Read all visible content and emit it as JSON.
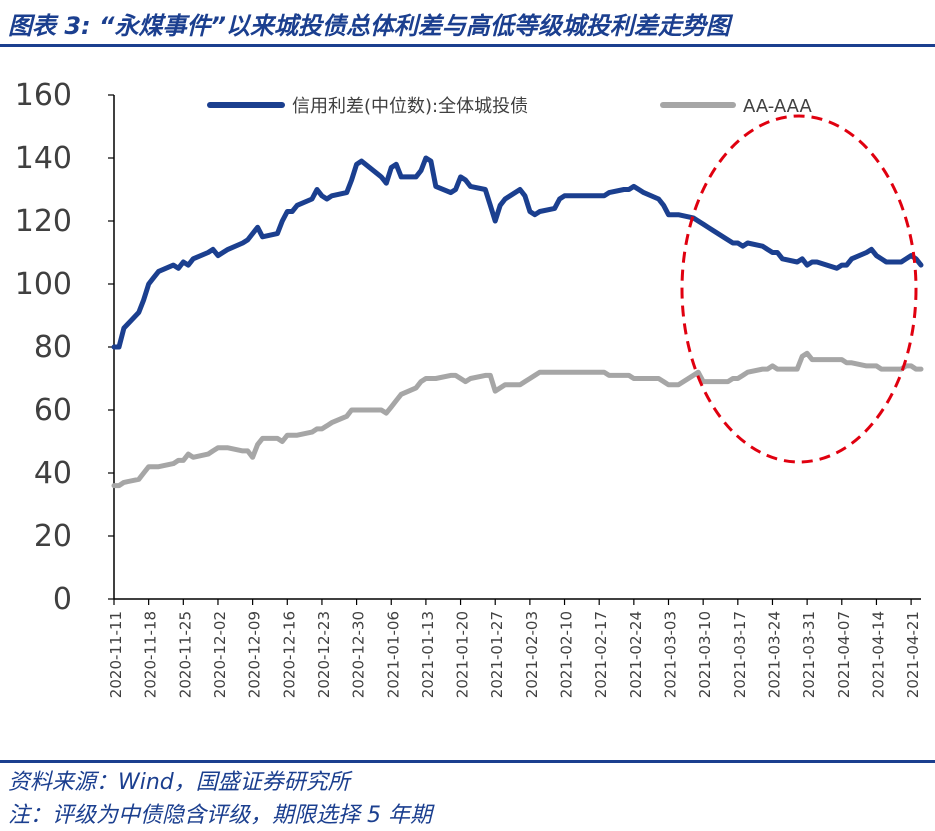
{
  "title": "图表 3:   “永煤事件”以来城投债总体利差与高低等级城投利差走势图",
  "source": "资料来源：Wind，国盛证券研究所",
  "note": "注：评级为中债隐含评级，期限选择 5 年期",
  "colors": {
    "series1": "#1b3f8f",
    "series2": "#a6a6a6",
    "annotation": "#e0000f",
    "accent": "#1b3f8f"
  },
  "chart_data": {
    "type": "line",
    "ylim": [
      0,
      160
    ],
    "yticks": [
      0,
      20,
      40,
      60,
      80,
      100,
      120,
      140,
      160
    ],
    "xlim": [
      "2020-11-11",
      "2021-04-23"
    ],
    "xticks": [
      "2020-11-11",
      "2020-11-18",
      "2020-11-25",
      "2020-12-02",
      "2020-12-09",
      "2020-12-16",
      "2020-12-23",
      "2020-12-30",
      "2021-01-06",
      "2021-01-13",
      "2021-01-20",
      "2021-01-27",
      "2021-02-03",
      "2021-02-10",
      "2021-02-17",
      "2021-02-24",
      "2021-03-03",
      "2021-03-10",
      "2021-03-17",
      "2021-03-24",
      "2021-03-31",
      "2021-04-07",
      "2021-04-14",
      "2021-04-21"
    ],
    "legend_position": "top",
    "grid": false,
    "annotation": "red dashed ellipse around 2021-03-10 to 2021-04-23",
    "series": [
      {
        "name": "信用利差(中位数):全体城投债",
        "color": "#1b3f8f",
        "points": [
          [
            "2020-11-11",
            80
          ],
          [
            "2020-11-12",
            80
          ],
          [
            "2020-11-13",
            86
          ],
          [
            "2020-11-16",
            91
          ],
          [
            "2020-11-17",
            95
          ],
          [
            "2020-11-18",
            100
          ],
          [
            "2020-11-19",
            102
          ],
          [
            "2020-11-20",
            104
          ],
          [
            "2020-11-23",
            106
          ],
          [
            "2020-11-24",
            105
          ],
          [
            "2020-11-25",
            107
          ],
          [
            "2020-11-26",
            106
          ],
          [
            "2020-11-27",
            108
          ],
          [
            "2020-11-30",
            110
          ],
          [
            "2020-12-01",
            111
          ],
          [
            "2020-12-02",
            109
          ],
          [
            "2020-12-03",
            110
          ],
          [
            "2020-12-04",
            111
          ],
          [
            "2020-12-07",
            113
          ],
          [
            "2020-12-08",
            114
          ],
          [
            "2020-12-09",
            116
          ],
          [
            "2020-12-10",
            118
          ],
          [
            "2020-12-11",
            115
          ],
          [
            "2020-12-14",
            116
          ],
          [
            "2020-12-15",
            120
          ],
          [
            "2020-12-16",
            123
          ],
          [
            "2020-12-17",
            123
          ],
          [
            "2020-12-18",
            125
          ],
          [
            "2020-12-21",
            127
          ],
          [
            "2020-12-22",
            130
          ],
          [
            "2020-12-23",
            128
          ],
          [
            "2020-12-24",
            127
          ],
          [
            "2020-12-25",
            128
          ],
          [
            "2020-12-28",
            129
          ],
          [
            "2020-12-29",
            133
          ],
          [
            "2020-12-30",
            138
          ],
          [
            "2020-12-31",
            139
          ],
          [
            "2021-01-04",
            134
          ],
          [
            "2021-01-05",
            132
          ],
          [
            "2021-01-06",
            137
          ],
          [
            "2021-01-07",
            138
          ],
          [
            "2021-01-08",
            134
          ],
          [
            "2021-01-11",
            134
          ],
          [
            "2021-01-12",
            136
          ],
          [
            "2021-01-13",
            140
          ],
          [
            "2021-01-14",
            139
          ],
          [
            "2021-01-15",
            131
          ],
          [
            "2021-01-18",
            129
          ],
          [
            "2021-01-19",
            130
          ],
          [
            "2021-01-20",
            134
          ],
          [
            "2021-01-21",
            133
          ],
          [
            "2021-01-22",
            131
          ],
          [
            "2021-01-25",
            130
          ],
          [
            "2021-01-26",
            125
          ],
          [
            "2021-01-27",
            120
          ],
          [
            "2021-01-28",
            125
          ],
          [
            "2021-01-29",
            127
          ],
          [
            "2021-02-01",
            130
          ],
          [
            "2021-02-02",
            128
          ],
          [
            "2021-02-03",
            123
          ],
          [
            "2021-02-04",
            122
          ],
          [
            "2021-02-05",
            123
          ],
          [
            "2021-02-08",
            124
          ],
          [
            "2021-02-09",
            127
          ],
          [
            "2021-02-10",
            128
          ],
          [
            "2021-02-18",
            128
          ],
          [
            "2021-02-19",
            129
          ],
          [
            "2021-02-22",
            130
          ],
          [
            "2021-02-23",
            130
          ],
          [
            "2021-02-24",
            131
          ],
          [
            "2021-02-25",
            130
          ],
          [
            "2021-02-26",
            129
          ],
          [
            "2021-03-01",
            127
          ],
          [
            "2021-03-02",
            125
          ],
          [
            "2021-03-03",
            122
          ],
          [
            "2021-03-04",
            122
          ],
          [
            "2021-03-05",
            122
          ],
          [
            "2021-03-08",
            121
          ],
          [
            "2021-03-09",
            120
          ],
          [
            "2021-03-10",
            119
          ],
          [
            "2021-03-11",
            118
          ],
          [
            "2021-03-12",
            117
          ],
          [
            "2021-03-15",
            114
          ],
          [
            "2021-03-16",
            113
          ],
          [
            "2021-03-17",
            113
          ],
          [
            "2021-03-18",
            112
          ],
          [
            "2021-03-19",
            113
          ],
          [
            "2021-03-22",
            112
          ],
          [
            "2021-03-23",
            111
          ],
          [
            "2021-03-24",
            110
          ],
          [
            "2021-03-25",
            110
          ],
          [
            "2021-03-26",
            108
          ],
          [
            "2021-03-29",
            107
          ],
          [
            "2021-03-30",
            108
          ],
          [
            "2021-03-31",
            106
          ],
          [
            "2021-04-01",
            107
          ],
          [
            "2021-04-02",
            107
          ],
          [
            "2021-04-06",
            105
          ],
          [
            "2021-04-07",
            106
          ],
          [
            "2021-04-08",
            106
          ],
          [
            "2021-04-09",
            108
          ],
          [
            "2021-04-12",
            110
          ],
          [
            "2021-04-13",
            111
          ],
          [
            "2021-04-14",
            109
          ],
          [
            "2021-04-15",
            108
          ],
          [
            "2021-04-16",
            107
          ],
          [
            "2021-04-19",
            107
          ],
          [
            "2021-04-20",
            108
          ],
          [
            "2021-04-21",
            109
          ],
          [
            "2021-04-22",
            108
          ],
          [
            "2021-04-23",
            106
          ]
        ]
      },
      {
        "name": "AA-AAA",
        "color": "#a6a6a6",
        "points": [
          [
            "2020-11-11",
            36
          ],
          [
            "2020-11-12",
            36
          ],
          [
            "2020-11-13",
            37
          ],
          [
            "2020-11-16",
            38
          ],
          [
            "2020-11-17",
            40
          ],
          [
            "2020-11-18",
            42
          ],
          [
            "2020-11-19",
            42
          ],
          [
            "2020-11-20",
            42
          ],
          [
            "2020-11-23",
            43
          ],
          [
            "2020-11-24",
            44
          ],
          [
            "2020-11-25",
            44
          ],
          [
            "2020-11-26",
            46
          ],
          [
            "2020-11-27",
            45
          ],
          [
            "2020-11-30",
            46
          ],
          [
            "2020-12-01",
            47
          ],
          [
            "2020-12-02",
            48
          ],
          [
            "2020-12-03",
            48
          ],
          [
            "2020-12-04",
            48
          ],
          [
            "2020-12-07",
            47
          ],
          [
            "2020-12-08",
            47
          ],
          [
            "2020-12-09",
            45
          ],
          [
            "2020-12-10",
            49
          ],
          [
            "2020-12-11",
            51
          ],
          [
            "2020-12-14",
            51
          ],
          [
            "2020-12-15",
            50
          ],
          [
            "2020-12-16",
            52
          ],
          [
            "2020-12-17",
            52
          ],
          [
            "2020-12-18",
            52
          ],
          [
            "2020-12-21",
            53
          ],
          [
            "2020-12-22",
            54
          ],
          [
            "2020-12-23",
            54
          ],
          [
            "2020-12-24",
            55
          ],
          [
            "2020-12-25",
            56
          ],
          [
            "2020-12-28",
            58
          ],
          [
            "2020-12-29",
            60
          ],
          [
            "2020-12-30",
            60
          ],
          [
            "2020-12-31",
            60
          ],
          [
            "2021-01-04",
            60
          ],
          [
            "2021-01-05",
            59
          ],
          [
            "2021-01-06",
            61
          ],
          [
            "2021-01-07",
            63
          ],
          [
            "2021-01-08",
            65
          ],
          [
            "2021-01-11",
            67
          ],
          [
            "2021-01-12",
            69
          ],
          [
            "2021-01-13",
            70
          ],
          [
            "2021-01-14",
            70
          ],
          [
            "2021-01-15",
            70
          ],
          [
            "2021-01-18",
            71
          ],
          [
            "2021-01-19",
            71
          ],
          [
            "2021-01-20",
            70
          ],
          [
            "2021-01-21",
            69
          ],
          [
            "2021-01-22",
            70
          ],
          [
            "2021-01-25",
            71
          ],
          [
            "2021-01-26",
            71
          ],
          [
            "2021-01-27",
            66
          ],
          [
            "2021-01-28",
            67
          ],
          [
            "2021-01-29",
            68
          ],
          [
            "2021-02-01",
            68
          ],
          [
            "2021-02-02",
            69
          ],
          [
            "2021-02-03",
            70
          ],
          [
            "2021-02-04",
            71
          ],
          [
            "2021-02-05",
            72
          ],
          [
            "2021-02-08",
            72
          ],
          [
            "2021-02-09",
            72
          ],
          [
            "2021-02-10",
            72
          ],
          [
            "2021-02-18",
            72
          ],
          [
            "2021-02-19",
            71
          ],
          [
            "2021-02-22",
            71
          ],
          [
            "2021-02-23",
            71
          ],
          [
            "2021-02-24",
            70
          ],
          [
            "2021-02-25",
            70
          ],
          [
            "2021-02-26",
            70
          ],
          [
            "2021-03-01",
            70
          ],
          [
            "2021-03-02",
            69
          ],
          [
            "2021-03-03",
            68
          ],
          [
            "2021-03-04",
            68
          ],
          [
            "2021-03-05",
            68
          ],
          [
            "2021-03-08",
            71
          ],
          [
            "2021-03-09",
            72
          ],
          [
            "2021-03-10",
            69
          ],
          [
            "2021-03-11",
            69
          ],
          [
            "2021-03-12",
            69
          ],
          [
            "2021-03-15",
            69
          ],
          [
            "2021-03-16",
            70
          ],
          [
            "2021-03-17",
            70
          ],
          [
            "2021-03-18",
            71
          ],
          [
            "2021-03-19",
            72
          ],
          [
            "2021-03-22",
            73
          ],
          [
            "2021-03-23",
            73
          ],
          [
            "2021-03-24",
            74
          ],
          [
            "2021-03-25",
            73
          ],
          [
            "2021-03-26",
            73
          ],
          [
            "2021-03-29",
            73
          ],
          [
            "2021-03-30",
            77
          ],
          [
            "2021-03-31",
            78
          ],
          [
            "2021-04-01",
            76
          ],
          [
            "2021-04-02",
            76
          ],
          [
            "2021-04-06",
            76
          ],
          [
            "2021-04-07",
            76
          ],
          [
            "2021-04-08",
            75
          ],
          [
            "2021-04-09",
            75
          ],
          [
            "2021-04-12",
            74
          ],
          [
            "2021-04-13",
            74
          ],
          [
            "2021-04-14",
            74
          ],
          [
            "2021-04-15",
            73
          ],
          [
            "2021-04-16",
            73
          ],
          [
            "2021-04-19",
            73
          ],
          [
            "2021-04-20",
            74
          ],
          [
            "2021-04-21",
            74
          ],
          [
            "2021-04-22",
            73
          ],
          [
            "2021-04-23",
            73
          ]
        ]
      }
    ]
  }
}
